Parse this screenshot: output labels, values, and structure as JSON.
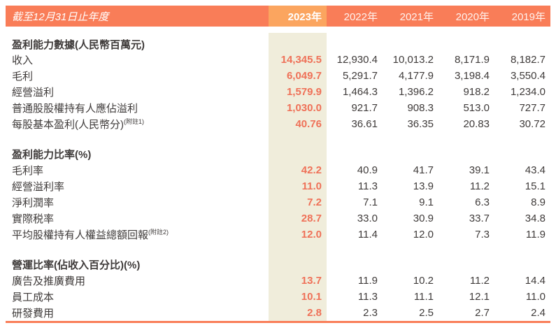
{
  "header": {
    "title": "截至12月31日止年度",
    "highlight_year": "2023年",
    "other_years": [
      "2022年",
      "2021年",
      "2020年",
      "2019年"
    ]
  },
  "sections": [
    {
      "title": "盈利能力數據(人民幣百萬元)",
      "rows": [
        {
          "label": "收入",
          "values": [
            "14,345.5",
            "12,930.4",
            "10,013.2",
            "8,171.9",
            "8,182.7"
          ]
        },
        {
          "label": "毛利",
          "values": [
            "6,049.7",
            "5,291.7",
            "4,177.9",
            "3,198.4",
            "3,550.4"
          ]
        },
        {
          "label": "經營溢利",
          "values": [
            "1,579.9",
            "1,464.3",
            "1,396.2",
            "918.2",
            "1,234.0"
          ]
        },
        {
          "label": "普通股股權持有人應佔溢利",
          "values": [
            "1,030.0",
            "921.7",
            "908.3",
            "513.0",
            "727.7"
          ]
        },
        {
          "label": "每股基本盈利(人民幣分)",
          "note": "(附註1)",
          "values": [
            "40.76",
            "36.61",
            "36.35",
            "20.83",
            "30.72"
          ]
        }
      ]
    },
    {
      "title": "盈利能力比率(%)",
      "rows": [
        {
          "label": "毛利率",
          "values": [
            "42.2",
            "40.9",
            "41.7",
            "39.1",
            "43.4"
          ]
        },
        {
          "label": "經營溢利率",
          "values": [
            "11.0",
            "11.3",
            "13.9",
            "11.2",
            "15.1"
          ]
        },
        {
          "label": "淨利潤率",
          "values": [
            "7.2",
            "7.1",
            "9.1",
            "6.3",
            "8.9"
          ]
        },
        {
          "label": "實際税率",
          "values": [
            "28.7",
            "33.0",
            "30.9",
            "33.7",
            "34.8"
          ]
        },
        {
          "label": "平均股權持有人權益總額回報",
          "note": "(附註2)",
          "values": [
            "12.0",
            "11.4",
            "12.0",
            "7.3",
            "11.9"
          ]
        }
      ]
    },
    {
      "title": "營運比率(佔收入百分比)(%)",
      "rows": [
        {
          "label": "廣告及推廣費用",
          "values": [
            "13.7",
            "11.9",
            "10.2",
            "11.2",
            "14.4"
          ]
        },
        {
          "label": "員工成本",
          "values": [
            "10.1",
            "11.3",
            "11.1",
            "12.1",
            "11.0"
          ]
        },
        {
          "label": "研發費用",
          "values": [
            "2.8",
            "2.3",
            "2.5",
            "2.7",
            "2.4"
          ]
        }
      ]
    }
  ],
  "colors": {
    "header_bg": "#F97D58",
    "highlight_header_bg": "#FBA55F",
    "highlight_col_bg": "#F0EDDB",
    "highlight_value": "#EF7158",
    "body_text": "#3F3B3A",
    "bottom_rule": "#F97D58"
  }
}
